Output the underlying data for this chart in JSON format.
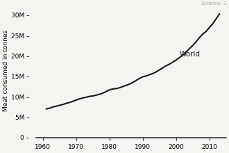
{
  "x": [
    1961,
    1962,
    1963,
    1964,
    1965,
    1966,
    1967,
    1968,
    1969,
    1970,
    1971,
    1972,
    1973,
    1974,
    1975,
    1976,
    1977,
    1978,
    1979,
    1980,
    1981,
    1982,
    1983,
    1984,
    1985,
    1986,
    1987,
    1988,
    1989,
    1990,
    1991,
    1992,
    1993,
    1994,
    1995,
    1996,
    1997,
    1998,
    1999,
    2000,
    2001,
    2002,
    2003,
    2004,
    2005,
    2006,
    2007,
    2008,
    2009,
    2010,
    2011,
    2012,
    2013
  ],
  "y": [
    7.0,
    7.2,
    7.5,
    7.7,
    7.9,
    8.1,
    8.4,
    8.6,
    8.9,
    9.2,
    9.5,
    9.7,
    9.9,
    10.1,
    10.2,
    10.4,
    10.6,
    10.9,
    11.3,
    11.7,
    11.9,
    12.0,
    12.2,
    12.5,
    12.8,
    13.1,
    13.5,
    14.0,
    14.5,
    14.9,
    15.1,
    15.4,
    15.7,
    16.1,
    16.6,
    17.1,
    17.6,
    18.0,
    18.5,
    19.0,
    19.6,
    20.2,
    21.0,
    21.8,
    22.6,
    23.5,
    24.5,
    25.4,
    26.0,
    27.0,
    27.9,
    29.1,
    30.3
  ],
  "xlabel_ticks": [
    1960,
    1970,
    1980,
    1990,
    2000,
    2010
  ],
  "ytick_labels": [
    "0 –",
    "5M –",
    "10M –",
    "15M –",
    "20M –",
    "25M –",
    "30M –"
  ],
  "ytick_values": [
    0,
    5,
    10,
    15,
    20,
    25,
    30
  ],
  "ylabel": "Meat consumed in tonnes",
  "line_color": "#1a1a1a",
  "line_width": 1.5,
  "label_world": "World",
  "world_x": 2001,
  "world_y": 20.5,
  "bg_color": "#f5f4f0",
  "xlim": [
    1958,
    2015
  ],
  "ylim": [
    0,
    33
  ],
  "watermark": "Science: 3"
}
